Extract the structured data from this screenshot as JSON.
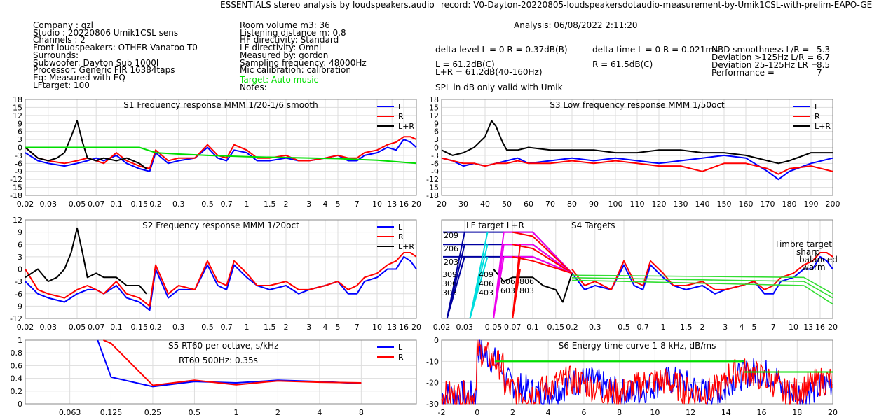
{
  "header": {
    "title": "ESSENTIALS stereo analysis by loudspeakers.audio",
    "record": "record: V0-Dayton-20220805-loudspeakersdotaudio-measurement-by-Umik1CSL-with-prelim-EAPO-GE",
    "analysis": "Analysis: 06/08/2022 2:11:20"
  },
  "info_left": [
    "Company : gzl",
    "Studio : 20220806 Umik1CSL sens",
    "Channels : 2",
    "Front loudspeakers: OTHER Vanatoo T0",
    "Surrounds:",
    "Subwoofer: Dayton Sub 1000l",
    "Processor: Generic FIR 16384taps",
    "Eq: Measured with EQ",
    "LFtarget: 100"
  ],
  "info_mid": [
    "Room volume m3: 36",
    "Listening distance m: 0.8",
    "HF directivity: Standard",
    "LF directivity: Omni",
    "Measured by: gordon",
    "Sampling frequency: 48000Hz",
    "Mic calibration: calibration"
  ],
  "info_mid_target": "Target: Auto music",
  "info_mid_notes": "Notes:",
  "metrics": {
    "delta_level": "delta level L = 0  R = 0.37dB(B)",
    "delta_time": "delta time  L = 0  R = 0.021ms",
    "l_level": "L =    61.2dB(C)",
    "r_level": "R =    61.5dB(C)",
    "lr_level": "L+R = 61.2dB(40-160Hz)",
    "nbd_label": "NBD smoothness L/R =",
    "nbd_value": "5.3",
    "dev_hi_label": "Deviation >125Hz L/R =",
    "dev_hi_value": "6.7",
    "dev_lo_label": "Deviation 25-125Hz LR =",
    "dev_lo_value": "8.5",
    "perf_label": "Performance =",
    "perf_value": "7",
    "spl_note": "SPL in dB only valid with Umik"
  },
  "colors": {
    "L": "#0000ff",
    "R": "#ff0000",
    "LR": "#000000",
    "target": "#00dd00",
    "grid": "#dddddd"
  },
  "chart_data": [
    {
      "id": "S1",
      "type": "line",
      "title": "S1  Frequency response MMM 1/20-1/6 smooth",
      "x_scale": "log",
      "x_unit": "kHz",
      "xlim": [
        0.02,
        20
      ],
      "x_ticks": [
        0.02,
        0.03,
        0.05,
        0.07,
        0.1,
        0.15,
        0.2,
        0.3,
        0.5,
        0.7,
        1,
        1.5,
        2,
        3,
        4,
        5,
        7,
        10,
        13,
        16,
        20
      ],
      "ylim": [
        -18,
        18
      ],
      "y_ticks": [
        18,
        15,
        12,
        9,
        6,
        3,
        0,
        -3,
        -6,
        -9,
        -12,
        -15,
        -18
      ],
      "legend": [
        "L",
        "R",
        "L+R"
      ],
      "series": [
        {
          "name": "L",
          "x": [
            0.02,
            0.025,
            0.03,
            0.04,
            0.05,
            0.06,
            0.07,
            0.08,
            0.1,
            0.12,
            0.15,
            0.18,
            0.2,
            0.25,
            0.3,
            0.4,
            0.5,
            0.6,
            0.7,
            0.8,
            1,
            1.2,
            1.5,
            2,
            2.5,
            3,
            4,
            5,
            6,
            7,
            8,
            10,
            12,
            14,
            16,
            18,
            20
          ],
          "y": [
            -2,
            -5,
            -6,
            -7,
            -6,
            -5,
            -4,
            -5,
            -3,
            -6,
            -8,
            -9,
            -2,
            -6,
            -5,
            -4,
            0,
            -4,
            -5,
            -1,
            -2,
            -5,
            -5,
            -4,
            -5,
            -5,
            -4,
            -3,
            -5,
            -5,
            -3,
            -2,
            0,
            -1,
            3,
            2,
            0
          ]
        },
        {
          "name": "R",
          "x": [
            0.02,
            0.025,
            0.03,
            0.04,
            0.05,
            0.06,
            0.07,
            0.08,
            0.1,
            0.12,
            0.15,
            0.18,
            0.2,
            0.25,
            0.3,
            0.4,
            0.5,
            0.6,
            0.7,
            0.8,
            1,
            1.2,
            1.5,
            2,
            2.5,
            3,
            4,
            5,
            6,
            7,
            8,
            10,
            12,
            14,
            16,
            18,
            20
          ],
          "y": [
            0,
            -4,
            -5,
            -6,
            -5,
            -4,
            -5,
            -6,
            -2,
            -5,
            -7,
            -8,
            -1,
            -5,
            -4,
            -4,
            1,
            -3,
            -4,
            1,
            -1,
            -4,
            -4,
            -3,
            -5,
            -5,
            -4,
            -3,
            -4,
            -4,
            -2,
            -1,
            1,
            2,
            4,
            4,
            3
          ]
        },
        {
          "name": "L+R",
          "x": [
            0.02,
            0.025,
            0.03,
            0.035,
            0.04,
            0.045,
            0.05,
            0.055,
            0.06,
            0.07,
            0.08,
            0.1,
            0.12,
            0.15,
            0.17
          ],
          "y": [
            0,
            -4,
            -5,
            -4,
            -2,
            4,
            10,
            2,
            -4,
            -5,
            -4,
            -5,
            -4,
            -6,
            -8
          ]
        },
        {
          "name": "target",
          "x": [
            0.02,
            0.15,
            0.2,
            0.3,
            0.5,
            1,
            2,
            5,
            10,
            20
          ],
          "y": [
            0,
            0,
            -2,
            -2.5,
            -3,
            -3.5,
            -3.8,
            -4.2,
            -4.8,
            -6
          ]
        }
      ]
    },
    {
      "id": "S3",
      "type": "line",
      "title": "S3  Low frequency response MMM 1/50oct",
      "x_unit": "Hz",
      "xlim": [
        20,
        200
      ],
      "x_ticks": [
        20,
        30,
        40,
        50,
        60,
        70,
        80,
        90,
        100,
        110,
        120,
        130,
        140,
        150,
        160,
        170,
        180,
        190,
        200
      ],
      "ylim": [
        -18,
        18
      ],
      "y_ticks": [
        18,
        15,
        12,
        9,
        6,
        3,
        0,
        -3,
        -6,
        -9,
        -12,
        -15,
        -18
      ],
      "legend": [
        "L",
        "R",
        "L+R"
      ],
      "series": [
        {
          "name": "L",
          "x": [
            20,
            25,
            30,
            35,
            40,
            45,
            50,
            55,
            60,
            70,
            80,
            90,
            100,
            110,
            120,
            130,
            140,
            150,
            160,
            170,
            175,
            180,
            190,
            200
          ],
          "y": [
            -4,
            -5,
            -7,
            -6,
            -7,
            -6,
            -5,
            -4,
            -6,
            -5,
            -4,
            -5,
            -4,
            -5,
            -6,
            -5,
            -4,
            -3,
            -4,
            -9,
            -12,
            -9,
            -6,
            -4
          ]
        },
        {
          "name": "R",
          "x": [
            20,
            25,
            30,
            35,
            40,
            45,
            50,
            55,
            60,
            70,
            80,
            90,
            100,
            110,
            120,
            130,
            140,
            150,
            160,
            170,
            175,
            180,
            190,
            200
          ],
          "y": [
            -4,
            -5,
            -6,
            -6,
            -7,
            -6,
            -6,
            -5,
            -6,
            -6,
            -5,
            -6,
            -5,
            -6,
            -7,
            -7,
            -9,
            -6,
            -6,
            -8,
            -10,
            -8,
            -7,
            -9
          ]
        },
        {
          "name": "L+R",
          "x": [
            20,
            25,
            30,
            35,
            40,
            43,
            45,
            48,
            50,
            55,
            60,
            70,
            80,
            90,
            100,
            110,
            120,
            130,
            140,
            150,
            160,
            170,
            175,
            180,
            190,
            200
          ],
          "y": [
            -1,
            -3,
            -2,
            0,
            4,
            10,
            8,
            2,
            -1,
            -1,
            0,
            -1,
            -1,
            -1,
            -2,
            -2,
            -1,
            -1,
            -2,
            -2,
            -3,
            -5,
            -6,
            -5,
            -2,
            -2
          ]
        }
      ]
    },
    {
      "id": "S2",
      "type": "line",
      "title": "S2  Frequency response MMM 1/20oct",
      "x_scale": "log",
      "x_unit": "kHz",
      "xlim": [
        0.02,
        20
      ],
      "x_ticks": [
        0.02,
        0.03,
        0.05,
        0.07,
        0.1,
        0.15,
        0.2,
        0.3,
        0.5,
        0.7,
        1,
        1.5,
        2,
        3,
        4,
        5,
        7,
        10,
        13,
        16,
        20
      ],
      "ylim": [
        -12,
        12
      ],
      "y_ticks": [
        12,
        9,
        6,
        3,
        0,
        -3,
        -6,
        -9,
        -12
      ],
      "legend": [
        "L",
        "R",
        "L+R"
      ],
      "series": [
        {
          "name": "L",
          "x": [
            0.02,
            0.025,
            0.03,
            0.04,
            0.05,
            0.06,
            0.07,
            0.08,
            0.1,
            0.12,
            0.15,
            0.18,
            0.2,
            0.25,
            0.3,
            0.4,
            0.5,
            0.6,
            0.7,
            0.8,
            1,
            1.2,
            1.5,
            2,
            2.5,
            3,
            4,
            5,
            6,
            7,
            8,
            10,
            12,
            14,
            16,
            18,
            20
          ],
          "y": [
            -3,
            -6,
            -7,
            -8,
            -6,
            -5,
            -5,
            -6,
            -4,
            -7,
            -8,
            -10,
            0,
            -7,
            -5,
            -5,
            1,
            -4,
            -5,
            1,
            -2,
            -4,
            -5,
            -4,
            -6,
            -5,
            -4,
            -3,
            -6,
            -6,
            -3,
            -2,
            0,
            0,
            3,
            2,
            0
          ]
        },
        {
          "name": "R",
          "x": [
            0.02,
            0.025,
            0.03,
            0.04,
            0.05,
            0.06,
            0.07,
            0.08,
            0.1,
            0.12,
            0.15,
            0.18,
            0.2,
            0.25,
            0.3,
            0.4,
            0.5,
            0.6,
            0.7,
            0.8,
            1,
            1.2,
            1.5,
            2,
            2.5,
            3,
            4,
            5,
            6,
            7,
            8,
            10,
            12,
            14,
            16,
            18,
            20
          ],
          "y": [
            0,
            -5,
            -6,
            -7,
            -5,
            -4,
            -5,
            -6,
            -3,
            -6,
            -7,
            -9,
            1,
            -6,
            -4,
            -5,
            2,
            -3,
            -4,
            2,
            -1,
            -4,
            -4,
            -3,
            -5,
            -5,
            -4,
            -3,
            -5,
            -4,
            -2,
            -1,
            1,
            2,
            4,
            4,
            3
          ]
        },
        {
          "name": "L+R",
          "x": [
            0.02,
            0.025,
            0.03,
            0.035,
            0.04,
            0.045,
            0.05,
            0.055,
            0.06,
            0.07,
            0.08,
            0.1,
            0.12,
            0.15,
            0.17
          ],
          "y": [
            -2,
            0,
            -3,
            -2,
            0,
            4,
            10,
            4,
            -2,
            -1,
            -2,
            -2,
            -4,
            -4,
            -6
          ]
        }
      ]
    },
    {
      "id": "S4",
      "type": "line",
      "title": "S4 Targets",
      "subtitle": "LF target L+R",
      "x_scale": "log",
      "x_unit": "kHz",
      "xlim": [
        0.02,
        20
      ],
      "x_ticks": [
        0.02,
        0.03,
        0.05,
        0.07,
        0.1,
        0.15,
        0.2,
        0.3,
        0.5,
        0.7,
        1,
        1.5,
        2,
        3,
        4,
        5,
        7,
        10,
        13,
        16,
        20
      ],
      "ylim": [
        -12,
        12
      ],
      "annotations": [
        "Timbre target",
        "sharp",
        "balanced",
        "warm"
      ],
      "target_labels": {
        "red": [
          "209",
          "206",
          "203",
          "806",
          "803"
        ],
        "navy": [
          "309",
          "306",
          "303"
        ],
        "cyan": [
          "606",
          "603"
        ],
        "magenta": [
          "409",
          "406",
          "403"
        ]
      },
      "series": [
        {
          "name": "L",
          "x": [
            0.2,
            0.25,
            0.3,
            0.4,
            0.5,
            0.6,
            0.7,
            0.8,
            1,
            1.2,
            1.5,
            2,
            2.5,
            3,
            4,
            5,
            6,
            7,
            8,
            10,
            12,
            14,
            16,
            18,
            20
          ],
          "y": [
            -1,
            -5,
            -4,
            -5,
            1,
            -4,
            -5,
            1,
            -2,
            -4,
            -5,
            -4,
            -6,
            -5,
            -4,
            -3,
            -6,
            -6,
            -3,
            -2,
            0,
            0,
            3,
            2,
            0
          ]
        },
        {
          "name": "R",
          "x": [
            0.2,
            0.25,
            0.3,
            0.4,
            0.5,
            0.6,
            0.7,
            0.8,
            1,
            1.2,
            1.5,
            2,
            2.5,
            3,
            4,
            5,
            6,
            7,
            8,
            10,
            12,
            14,
            16,
            18,
            20
          ],
          "y": [
            0,
            -4,
            -3,
            -5,
            2,
            -3,
            -4,
            2,
            -1,
            -4,
            -4,
            -3,
            -5,
            -5,
            -4,
            -3,
            -5,
            -4,
            -2,
            -1,
            1,
            2,
            4,
            4,
            3
          ]
        },
        {
          "name": "L+R",
          "x": [
            0.05,
            0.06,
            0.07,
            0.08,
            0.1,
            0.12,
            0.15,
            0.17,
            0.2
          ],
          "y": [
            0,
            -3,
            -2,
            -2,
            -2,
            -4,
            -5,
            -8,
            -1
          ]
        }
      ]
    },
    {
      "id": "S5",
      "type": "line",
      "title": "S5  RT60 per octave, s/kHz",
      "note": "RT60 500Hz: 0.35s",
      "x_scale": "log",
      "x_unit": "kHz",
      "xlim": [
        0.03,
        20
      ],
      "x_ticks": [
        0.063,
        0.125,
        0.25,
        0.5,
        1,
        2,
        4,
        8
      ],
      "ylim": [
        0,
        1
      ],
      "y_ticks": [
        1,
        0.8,
        0.6,
        0.4,
        0.2,
        0
      ],
      "legend": [
        "L",
        "R"
      ],
      "series": [
        {
          "name": "L",
          "x": [
            0.1,
            0.125,
            0.25,
            0.5,
            1,
            2,
            4,
            8
          ],
          "y": [
            1.0,
            0.42,
            0.27,
            0.35,
            0.33,
            0.37,
            0.35,
            0.32
          ]
        },
        {
          "name": "R",
          "x": [
            0.11,
            0.125,
            0.25,
            0.5,
            1,
            2,
            4,
            8
          ],
          "y": [
            1.0,
            0.95,
            0.29,
            0.37,
            0.3,
            0.36,
            0.34,
            0.33
          ]
        }
      ]
    },
    {
      "id": "S6",
      "type": "line",
      "title": "S6  Energy-time curve 1-8 kHz, dB/ms",
      "x_unit": "ms",
      "xlim": [
        -2,
        20
      ],
      "x_ticks": [
        -2,
        0,
        2,
        4,
        6,
        8,
        10,
        12,
        14,
        16,
        18,
        20
      ],
      "ylim": [
        -30,
        0
      ],
      "y_ticks": [
        0,
        -10,
        -20,
        -30
      ],
      "series": [
        {
          "name": "limit1",
          "x": [
            1,
            15
          ],
          "y": [
            -10,
            -10
          ]
        },
        {
          "name": "limit2",
          "x": [
            15,
            20
          ],
          "y": [
            -15,
            -15
          ]
        }
      ]
    }
  ]
}
